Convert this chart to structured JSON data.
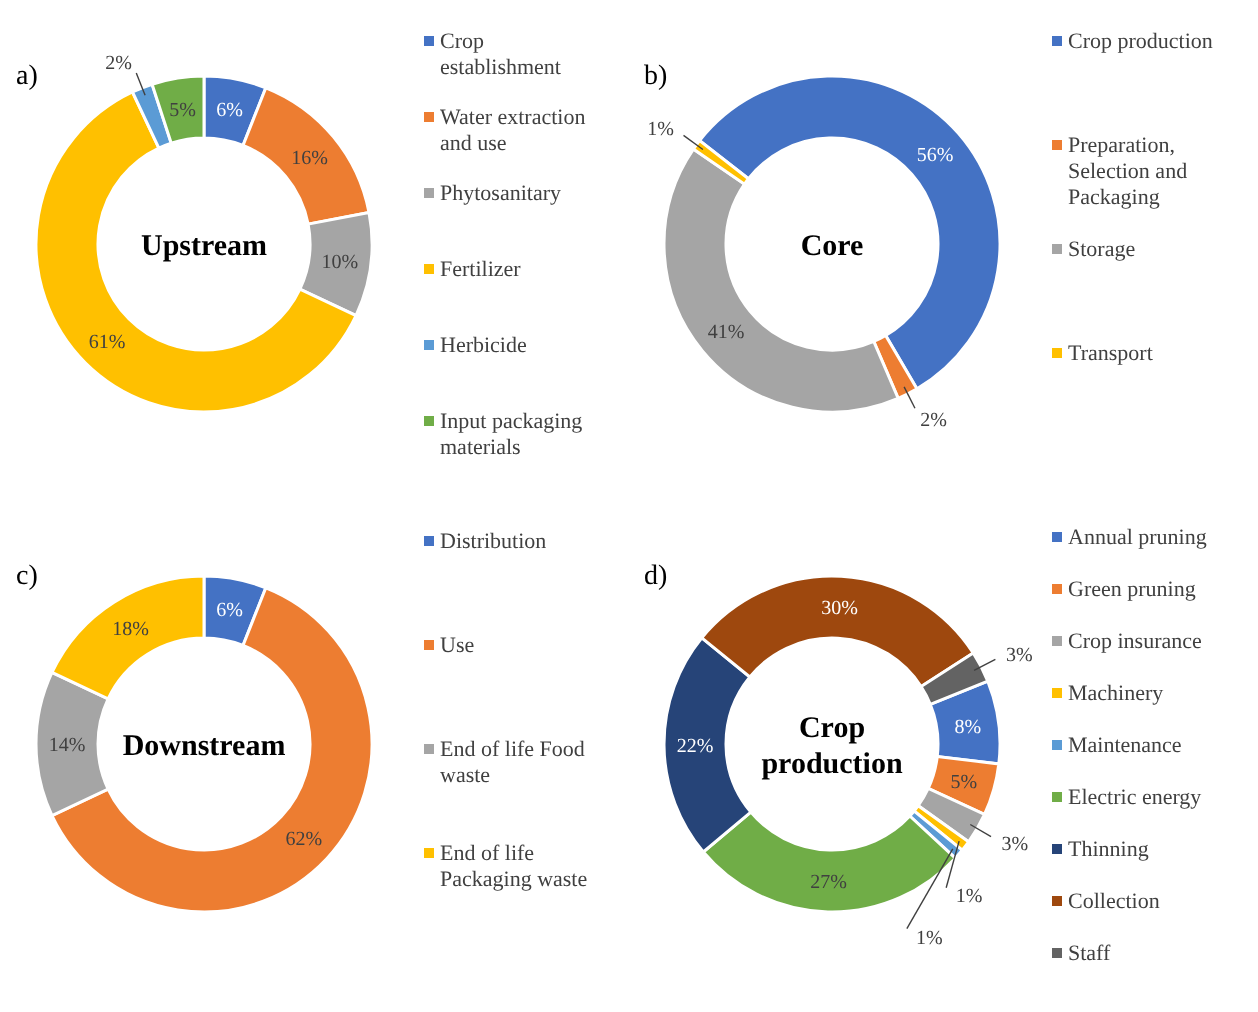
{
  "chart_data": [
    {
      "type": "donut",
      "title": "Upstream",
      "annotations": [
        "a)"
      ],
      "legend": "right",
      "categories": [
        "Crop establishment",
        "Water extraction and use",
        "Phytosanitary",
        "Fertilizer",
        "Herbicide",
        "Input packaging materials"
      ],
      "values": [
        6,
        16,
        10,
        61,
        2,
        5
      ],
      "value_labels": [
        "6%",
        "16%",
        "10%",
        "61%",
        "2%",
        "5%"
      ],
      "colors": [
        "#4472c4",
        "#ed7d31",
        "#a5a5a5",
        "#ffc000",
        "#5b9bd5",
        "#70ad47"
      ]
    },
    {
      "type": "donut",
      "title": "Core",
      "annotations": [
        "b)"
      ],
      "legend": "right",
      "categories": [
        "Crop production",
        "Preparation, Selection and Packaging",
        "Storage",
        "Transport"
      ],
      "values": [
        56,
        2,
        41,
        1
      ],
      "value_labels": [
        "56%",
        "2%",
        "41%",
        "1%"
      ],
      "colors": [
        "#4472c4",
        "#ed7d31",
        "#a5a5a5",
        "#ffc000"
      ]
    },
    {
      "type": "donut",
      "title": "Downstream",
      "annotations": [
        "c)"
      ],
      "legend": "right",
      "categories": [
        "Distribution",
        "Use",
        "End of life Food waste",
        "End of life Packaging waste"
      ],
      "values": [
        6,
        62,
        14,
        18
      ],
      "value_labels": [
        "6%",
        "62%",
        "14%",
        "18%"
      ],
      "colors": [
        "#4472c4",
        "#ed7d31",
        "#a5a5a5",
        "#ffc000"
      ]
    },
    {
      "type": "donut",
      "title": "Crop production",
      "annotations": [
        "d)"
      ],
      "legend": "right",
      "categories": [
        "Annual pruning",
        "Green pruning",
        "Crop insurance",
        "Machinery",
        "Maintenance",
        "Electric energy",
        "Thinning",
        "Collection",
        "Staff"
      ],
      "values": [
        8,
        5,
        3,
        1,
        1,
        27,
        22,
        30,
        3
      ],
      "value_labels": [
        "8%",
        "5%",
        "3%",
        "1%",
        "1%",
        "27%",
        "22%",
        "30%",
        "3%"
      ],
      "colors": [
        "#4472c4",
        "#ed7d31",
        "#a5a5a5",
        "#ffc000",
        "#5b9bd5",
        "#70ad47",
        "#264478",
        "#9e480e",
        "#636363"
      ]
    }
  ]
}
